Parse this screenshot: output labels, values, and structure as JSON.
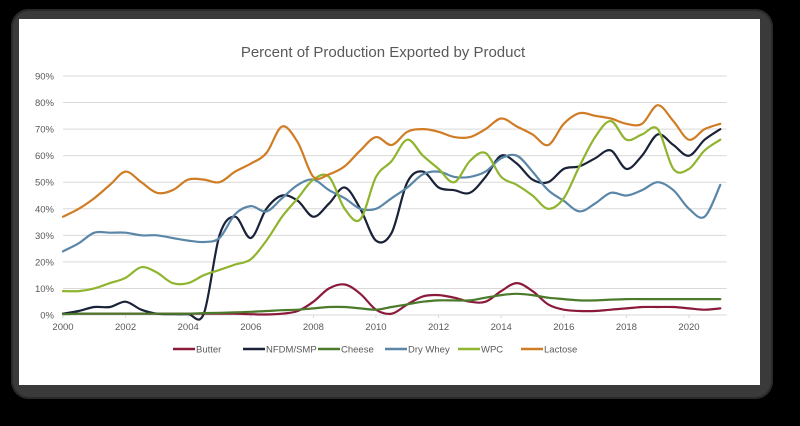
{
  "chart_data": {
    "type": "line",
    "title": "Percent of Production Exported by Product",
    "xlabel": "",
    "ylabel": "",
    "xlim": [
      2000,
      2021.2
    ],
    "ylim": [
      0,
      90
    ],
    "x_ticks": [
      2000,
      2002,
      2004,
      2006,
      2008,
      2010,
      2012,
      2014,
      2016,
      2018,
      2020
    ],
    "x_tick_labels": [
      "2000",
      "2002",
      "2004",
      "2006",
      "2008",
      "2010",
      "2012",
      "2014",
      "2016",
      "2018",
      "2020"
    ],
    "y_ticks": [
      0,
      10,
      20,
      30,
      40,
      50,
      60,
      70,
      80,
      90
    ],
    "y_tick_labels": [
      "0%",
      "10%",
      "20%",
      "30%",
      "40%",
      "50%",
      "60%",
      "70%",
      "80%",
      "90%"
    ],
    "grid": true,
    "legend_position": "bottom",
    "x": [
      2000.0,
      2000.5,
      2001.0,
      2001.5,
      2002.0,
      2002.5,
      2003.0,
      2003.5,
      2004.0,
      2004.5,
      2005.0,
      2005.5,
      2006.0,
      2006.5,
      2007.0,
      2007.5,
      2008.0,
      2008.5,
      2009.0,
      2009.5,
      2010.0,
      2010.5,
      2011.0,
      2011.5,
      2012.0,
      2012.5,
      2013.0,
      2013.5,
      2014.0,
      2014.5,
      2015.0,
      2015.5,
      2016.0,
      2016.5,
      2017.0,
      2017.5,
      2018.0,
      2018.5,
      2019.0,
      2019.5,
      2020.0,
      2020.5,
      2021.0
    ],
    "series": [
      {
        "name": "Butter",
        "color": "#8b1a3a",
        "values": [
          0.5,
          0.5,
          0.5,
          0.5,
          0.5,
          0.5,
          0.5,
          0.5,
          0.5,
          0.5,
          0.5,
          0.5,
          0.3,
          0.2,
          0.5,
          1.5,
          5,
          10,
          11.5,
          8,
          2,
          0.5,
          4,
          7,
          7.5,
          6.5,
          5,
          5,
          9,
          12,
          9,
          4,
          2,
          1.5,
          1.5,
          2,
          2.5,
          3,
          3,
          3,
          2.5,
          2,
          2.5
        ]
      },
      {
        "name": "NFDM/SMP",
        "color": "#1a2238",
        "values": [
          0.5,
          1.5,
          3,
          3,
          5,
          2,
          0.5,
          0.3,
          0.3,
          0.5,
          30,
          37,
          29,
          40,
          45,
          43,
          37,
          42,
          48,
          40,
          28,
          31,
          50,
          54,
          48,
          47,
          46,
          52,
          60,
          57,
          51,
          50,
          55,
          56,
          59,
          62,
          55,
          60,
          68,
          64,
          60,
          66,
          70
        ]
      },
      {
        "name": "Cheese",
        "color": "#4a7a2a",
        "values": [
          0.3,
          0.5,
          0.5,
          0.5,
          0.5,
          0.5,
          0.5,
          0.5,
          0.5,
          0.7,
          0.8,
          1,
          1.2,
          1.5,
          1.8,
          2,
          2.5,
          3,
          3,
          2.5,
          2,
          3,
          4,
          5,
          5.5,
          5.5,
          5.5,
          6.5,
          7.5,
          8,
          7.5,
          6.5,
          6,
          5.5,
          5.5,
          5.8,
          6,
          6,
          6,
          6,
          6,
          6,
          6
        ]
      },
      {
        "name": "Dry Whey",
        "color": "#5a86a8",
        "values": [
          24,
          27,
          31,
          31,
          31,
          30,
          30,
          29,
          28,
          27.5,
          29,
          38,
          41,
          39,
          44,
          49,
          51,
          47,
          44,
          40,
          40,
          44,
          48,
          53,
          54,
          52,
          52,
          54,
          59,
          60,
          54,
          47,
          43,
          39,
          42,
          46,
          45,
          47,
          50,
          47,
          40,
          37,
          49
        ]
      },
      {
        "name": "WPC",
        "color": "#8fb52e",
        "values": [
          9,
          9,
          10,
          12,
          14,
          18,
          16,
          12,
          12,
          15,
          17,
          19,
          21,
          28,
          37,
          44,
          51,
          52,
          40,
          36,
          52,
          58,
          66,
          60,
          55,
          50,
          58,
          61,
          52,
          49,
          45,
          40,
          44,
          56,
          67,
          73,
          66,
          68,
          70,
          55,
          55,
          62,
          66
        ]
      },
      {
        "name": "Lactose",
        "color": "#d07c25",
        "values": [
          37,
          40,
          44,
          49,
          54,
          50,
          46,
          47,
          51,
          51,
          50,
          54,
          57,
          61,
          71,
          65,
          52,
          53,
          56,
          62,
          67,
          64,
          69,
          70,
          69,
          67,
          67,
          70,
          74,
          71,
          68,
          64,
          72,
          76,
          75,
          74,
          72,
          72,
          79,
          73,
          66,
          70,
          72
        ]
      }
    ]
  }
}
